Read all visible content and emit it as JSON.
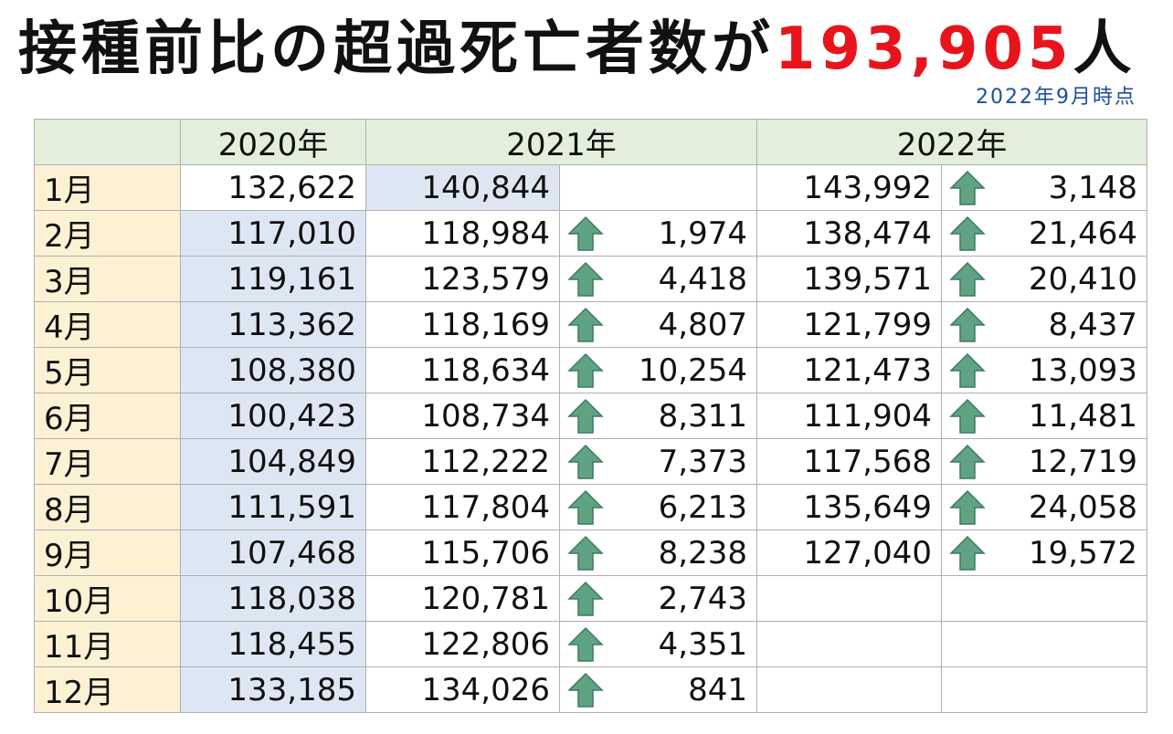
{
  "header": {
    "title": "接種前比の超過死亡者数が",
    "highlight": "193,905",
    "title_suffix": "人",
    "note": "2022年9月時点"
  },
  "table": {
    "columns": [
      "2020年",
      "2021年",
      "2022年"
    ],
    "rows": [
      [
        "1月",
        "132,622",
        "140,844",
        null,
        "143,992",
        "3,148"
      ],
      [
        "2月",
        "117,010",
        "118,984",
        "1,974",
        "138,474",
        "21,464"
      ],
      [
        "3月",
        "119,161",
        "123,579",
        "4,418",
        "139,571",
        "20,410"
      ],
      [
        "4月",
        "113,362",
        "118,169",
        "4,807",
        "121,799",
        "8,437"
      ],
      [
        "5月",
        "108,380",
        "118,634",
        "10,254",
        "121,473",
        "13,093"
      ],
      [
        "6月",
        "100,423",
        "108,734",
        "8,311",
        "111,904",
        "11,481"
      ],
      [
        "7月",
        "104,849",
        "112,222",
        "7,373",
        "117,568",
        "12,719"
      ],
      [
        "8月",
        "111,591",
        "117,804",
        "6,213",
        "135,649",
        "24,058"
      ],
      [
        "9月",
        "107,468",
        "115,706",
        "8,238",
        "127,040",
        "19,572"
      ],
      [
        "10月",
        "118,038",
        "120,781",
        "2,743",
        null,
        null
      ],
      [
        "11月",
        "118,455",
        "122,806",
        "4,351",
        null,
        null
      ],
      [
        "12月",
        "133,185",
        "134,026",
        "841",
        null,
        null
      ]
    ]
  }
}
